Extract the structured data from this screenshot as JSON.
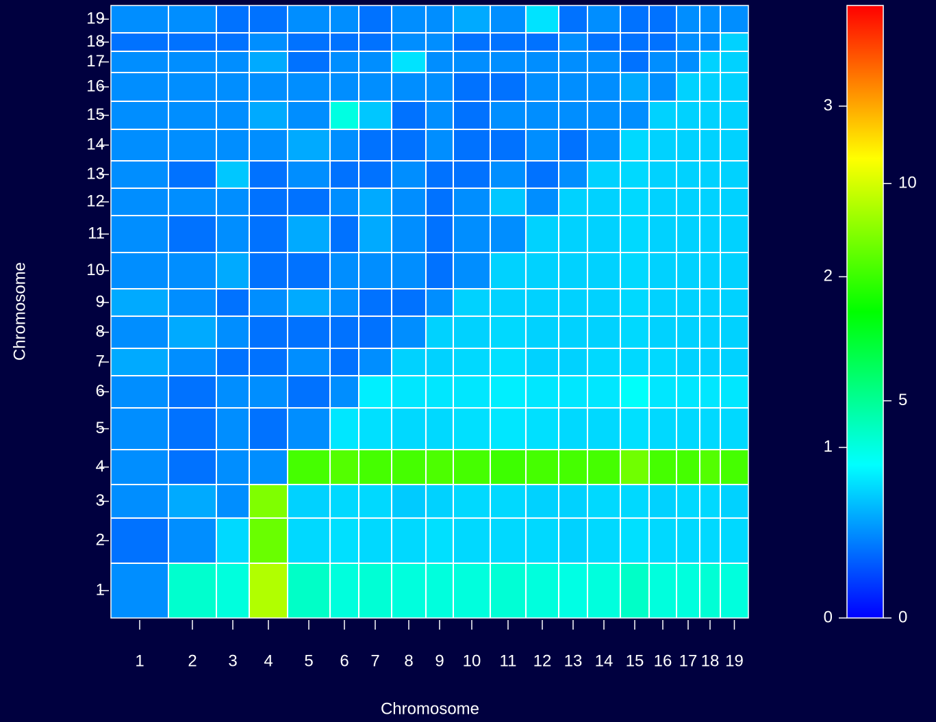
{
  "chart_data": {
    "type": "heatmap",
    "xlabel": "Chromosome",
    "ylabel": "Chromosome",
    "categories": [
      "1",
      "2",
      "3",
      "4",
      "5",
      "6",
      "7",
      "8",
      "9",
      "10",
      "11",
      "12",
      "13",
      "14",
      "15",
      "16",
      "17",
      "18",
      "19"
    ],
    "values": [
      [
        0.5,
        4.2,
        4.0,
        9.5,
        4.3,
        4.0,
        4.1,
        4.0,
        4.0,
        4.0,
        4.1,
        4.0,
        3.9,
        4.0,
        4.3,
        4.0,
        4.0,
        4.1,
        4.0
      ],
      [
        0.4,
        0.5,
        3.0,
        8.5,
        3.0,
        3.1,
        3.0,
        3.0,
        3.1,
        3.0,
        3.0,
        3.0,
        2.9,
        3.0,
        3.1,
        3.0,
        3.0,
        3.0,
        3.0
      ],
      [
        0.5,
        0.6,
        0.5,
        8.8,
        2.9,
        3.0,
        3.0,
        2.8,
        2.9,
        3.0,
        3.0,
        2.9,
        2.9,
        3.0,
        3.0,
        2.9,
        3.0,
        3.0,
        2.9
      ],
      [
        0.5,
        0.4,
        0.5,
        0.5,
        8.0,
        8.2,
        8.0,
        8.0,
        8.1,
        8.0,
        7.9,
        8.0,
        8.0,
        8.0,
        8.6,
        8.0,
        8.0,
        8.2,
        8.0
      ],
      [
        0.5,
        0.4,
        0.5,
        0.4,
        0.5,
        3.2,
        3.1,
        3.0,
        3.0,
        3.1,
        3.2,
        3.1,
        3.0,
        3.0,
        3.1,
        3.0,
        3.0,
        3.0,
        3.0
      ],
      [
        0.5,
        0.4,
        0.5,
        0.5,
        0.4,
        0.5,
        3.3,
        3.2,
        3.2,
        3.2,
        3.3,
        3.2,
        3.2,
        3.2,
        3.6,
        3.2,
        3.2,
        3.2,
        3.2
      ],
      [
        0.6,
        0.5,
        0.4,
        0.4,
        0.5,
        0.4,
        0.5,
        2.9,
        2.9,
        3.0,
        3.1,
        2.9,
        2.9,
        3.0,
        3.0,
        3.0,
        2.9,
        2.9,
        2.9
      ],
      [
        0.5,
        0.6,
        0.5,
        0.4,
        0.4,
        0.4,
        0.4,
        0.5,
        2.9,
        2.9,
        3.0,
        2.9,
        2.9,
        2.9,
        3.0,
        2.9,
        2.9,
        2.9,
        2.9
      ],
      [
        0.6,
        0.5,
        0.4,
        0.5,
        0.6,
        0.5,
        0.4,
        0.4,
        0.5,
        2.9,
        2.9,
        2.9,
        2.9,
        2.9,
        3.0,
        2.9,
        2.9,
        2.9,
        2.9
      ],
      [
        0.5,
        0.5,
        0.6,
        0.4,
        0.4,
        0.5,
        0.5,
        0.5,
        0.4,
        0.5,
        2.9,
        2.9,
        2.9,
        2.9,
        3.0,
        2.9,
        2.9,
        2.9,
        2.9
      ],
      [
        0.5,
        0.4,
        0.5,
        0.4,
        0.6,
        0.4,
        0.6,
        0.5,
        0.4,
        0.5,
        0.5,
        2.9,
        2.9,
        2.9,
        3.0,
        2.9,
        2.9,
        2.9,
        2.9
      ],
      [
        0.5,
        0.5,
        0.5,
        0.4,
        0.4,
        0.5,
        0.6,
        0.5,
        0.4,
        0.5,
        0.7,
        0.5,
        2.9,
        2.9,
        3.0,
        2.9,
        2.9,
        2.9,
        2.9
      ],
      [
        0.5,
        0.4,
        0.7,
        0.4,
        0.5,
        0.4,
        0.4,
        0.5,
        0.4,
        0.4,
        0.5,
        0.4,
        0.5,
        2.9,
        3.0,
        2.9,
        2.9,
        2.9,
        2.9
      ],
      [
        0.5,
        0.5,
        0.5,
        0.5,
        0.6,
        0.5,
        0.4,
        0.4,
        0.5,
        0.4,
        0.4,
        0.5,
        0.4,
        0.5,
        3.0,
        2.9,
        2.9,
        2.9,
        2.9
      ],
      [
        0.5,
        0.5,
        0.5,
        0.6,
        0.5,
        1.0,
        0.7,
        0.4,
        0.5,
        0.4,
        0.5,
        0.5,
        0.5,
        0.5,
        0.5,
        2.9,
        2.9,
        2.9,
        2.9
      ],
      [
        0.5,
        0.5,
        0.5,
        0.5,
        0.5,
        0.5,
        0.5,
        0.5,
        0.5,
        0.4,
        0.4,
        0.5,
        0.5,
        0.5,
        0.6,
        0.5,
        2.9,
        2.9,
        2.9
      ],
      [
        0.5,
        0.5,
        0.5,
        0.6,
        0.4,
        0.5,
        0.5,
        0.8,
        0.5,
        0.5,
        0.5,
        0.5,
        0.5,
        0.5,
        0.4,
        0.5,
        0.5,
        2.9,
        2.9
      ],
      [
        0.4,
        0.4,
        0.4,
        0.5,
        0.4,
        0.4,
        0.4,
        0.5,
        0.5,
        0.4,
        0.4,
        0.4,
        0.5,
        0.4,
        0.4,
        0.4,
        0.5,
        0.5,
        2.9
      ],
      [
        0.5,
        0.5,
        0.4,
        0.4,
        0.5,
        0.5,
        0.4,
        0.5,
        0.5,
        0.6,
        0.5,
        0.8,
        0.4,
        0.5,
        0.4,
        0.4,
        0.5,
        0.5,
        0.5
      ]
    ],
    "zlim": [
      0,
      3.59
    ],
    "zticks": [
      0,
      1,
      2,
      3
    ],
    "z2lim": [
      0,
      14.1
    ],
    "z2ticks": [
      0,
      5,
      10
    ]
  }
}
